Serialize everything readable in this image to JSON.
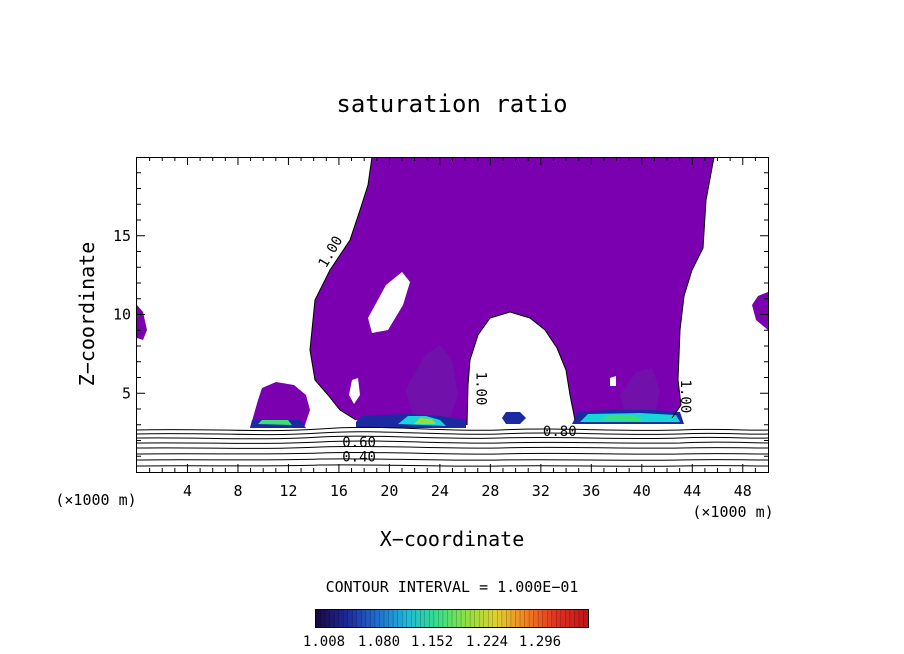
{
  "chart_data": {
    "type": "heatmap",
    "title": "saturation ratio",
    "xlabel": "X−coordinate",
    "ylabel": "Z−coordinate",
    "x_unit_left": "(×1000 m)",
    "x_unit_right": "(×1000 m)",
    "xlim": [
      0,
      50
    ],
    "ylim": [
      0,
      20
    ],
    "x_ticks": [
      4,
      8,
      12,
      16,
      20,
      24,
      28,
      32,
      36,
      40,
      44,
      48
    ],
    "y_ticks": [
      5,
      10,
      15
    ],
    "contour_labels": [
      {
        "text": "1.00",
        "x": 15.3,
        "z": 14.0,
        "rotate": -60
      },
      {
        "text": "1.00",
        "x": 27.3,
        "z": 5.3,
        "rotate": 90
      },
      {
        "text": "1.00",
        "x": 43.5,
        "z": 4.8,
        "rotate": 90
      },
      {
        "text": "0.80",
        "x": 33.5,
        "z": 2.6,
        "rotate": 0
      },
      {
        "text": "0.60",
        "x": 17.6,
        "z": 1.9,
        "rotate": 0
      },
      {
        "text": "0.40",
        "x": 17.6,
        "z": 1.0,
        "rotate": 0
      }
    ],
    "contour_interval_text": "CONTOUR INTERVAL = 1.000E−01",
    "colorbar": {
      "labels": [
        "1.008",
        "1.080",
        "1.152",
        "1.224",
        "1.296"
      ],
      "colors": [
        "#1a0a4a",
        "#1e2a9a",
        "#1f6fd0",
        "#22b8d8",
        "#35e08a",
        "#90e040",
        "#e0d030",
        "#f08020",
        "#e03020",
        "#c01818"
      ]
    },
    "shade_colors": {
      "base": "#7a00b0",
      "dark": "#6a1aa6",
      "blue": "#1b2aa0",
      "cyan": "#19d6d6",
      "green": "#39e07a"
    }
  }
}
